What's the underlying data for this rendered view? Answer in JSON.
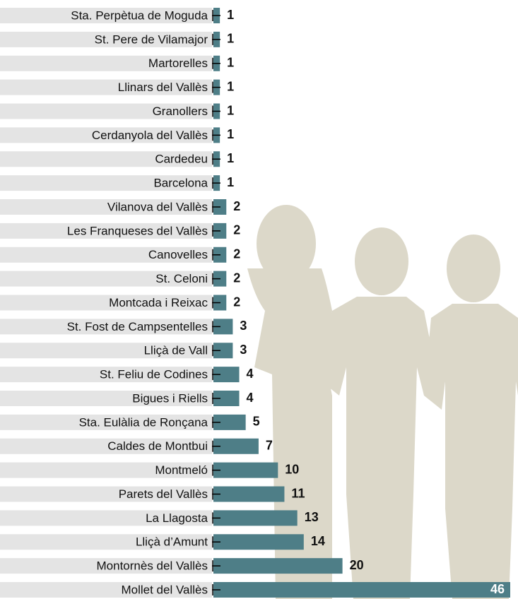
{
  "chart_data": {
    "type": "bar",
    "orientation": "horizontal",
    "color": "#4e7e87",
    "categories": [
      "Sta. Perpètua de Moguda",
      "St. Pere de Vilamajor",
      "Martorelles",
      "Llinars del Vallès",
      "Granollers",
      "Cerdanyola del Vallès",
      "Cardedeu",
      "Barcelona",
      "Vilanova del Vallès",
      "Les Franqueses del Vallès",
      "Canovelles",
      "St. Celoni",
      "Montcada i Reixac",
      "St. Fost de Campsentelles",
      "Lliçà de Vall",
      "St. Feliu de Codines",
      "Bigues i Riells",
      "Sta. Eulàlia de Ronçana",
      "Caldes de Montbui",
      "Montmeló",
      "Parets del Vallès",
      "La Llagosta",
      "Lliçà d’Amunt",
      "Montornès del Vallès",
      "Mollet del Vallès"
    ],
    "values": [
      1,
      1,
      1,
      1,
      1,
      1,
      1,
      1,
      2,
      2,
      2,
      2,
      2,
      3,
      3,
      4,
      4,
      5,
      7,
      10,
      11,
      13,
      14,
      20,
      46
    ]
  }
}
